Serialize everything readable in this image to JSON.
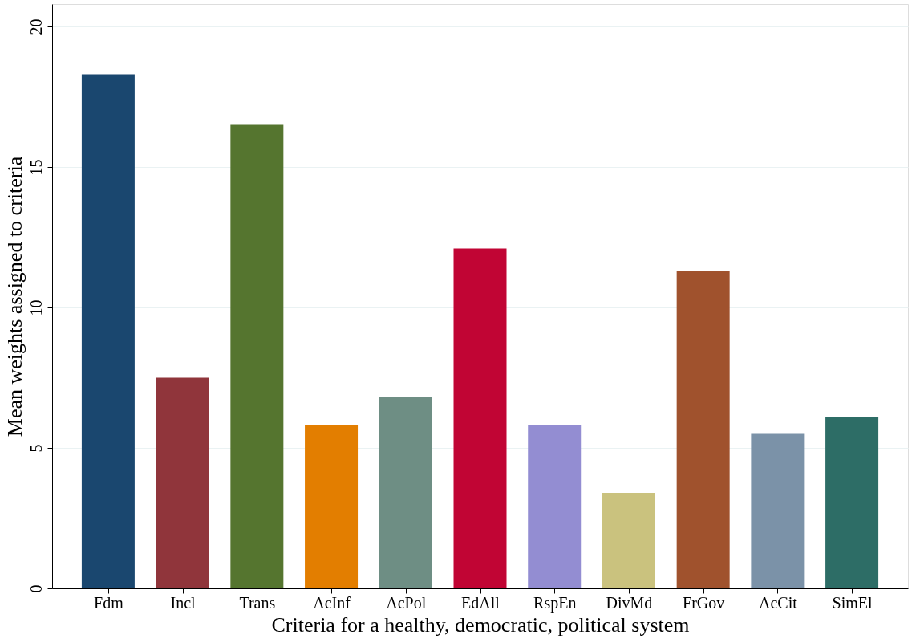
{
  "chart_data": {
    "type": "bar",
    "xlabel": "Criteria for a healthy, democratic, political system",
    "ylabel": "Mean weights assigned to criteria",
    "categories": [
      "Fdm",
      "Incl",
      "Trans",
      "AcInf",
      "AcPol",
      "EdAll",
      "RspEn",
      "DivMd",
      "FrGov",
      "AcCit",
      "SimEl"
    ],
    "values": [
      18.3,
      7.5,
      16.5,
      5.8,
      6.8,
      12.1,
      5.8,
      3.4,
      11.3,
      5.5,
      6.1
    ],
    "colors": [
      "#1a476f",
      "#90353b",
      "#55752f",
      "#e37e00",
      "#6e8e84",
      "#c10534",
      "#938dd2",
      "#cac27e",
      "#a0522d",
      "#7b92a8",
      "#2d6d66"
    ],
    "ylim": [
      0,
      20.8
    ],
    "yticks": [
      0,
      5,
      10,
      15,
      20
    ],
    "grid": "y"
  }
}
